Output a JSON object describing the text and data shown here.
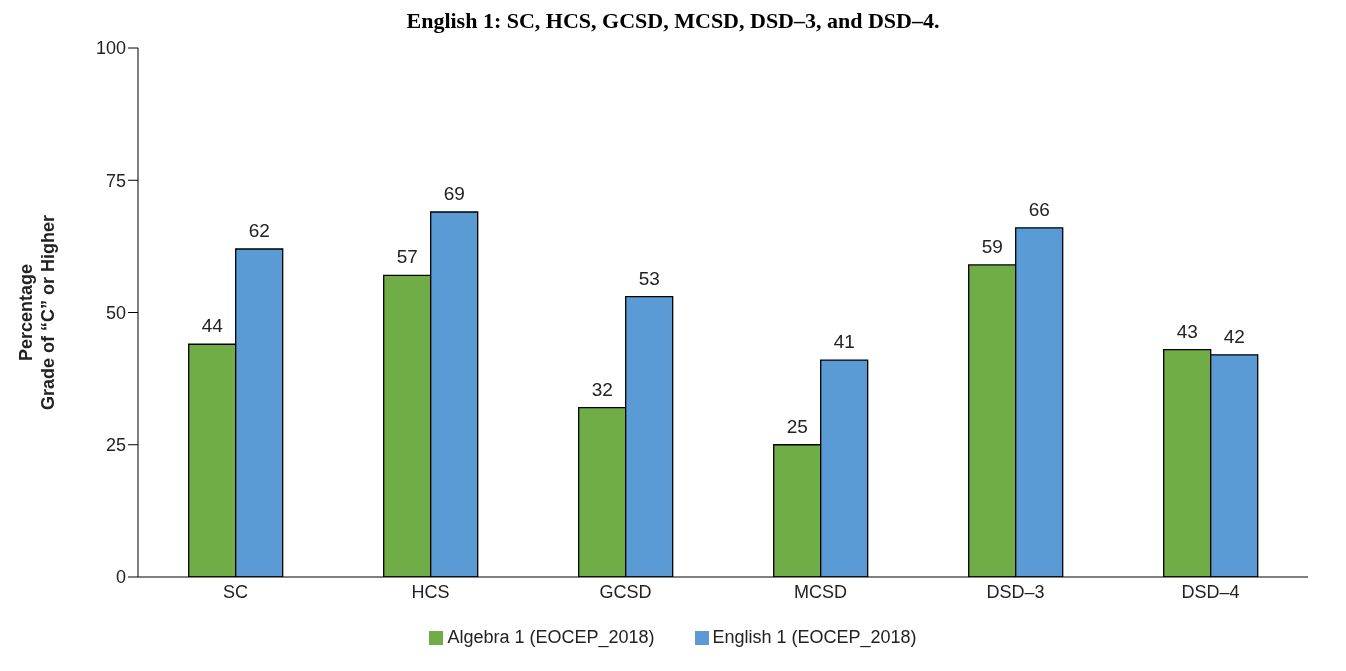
{
  "chart_data": {
    "type": "bar",
    "title": "English 1: SC, HCS, GCSD, MCSD, DSD–3, and DSD–4.",
    "ylabel": "Percentage\nGrade of “C” or Higher",
    "categories": [
      "SC",
      "HCS",
      "GCSD",
      "MCSD",
      "DSD–3",
      "DSD–4"
    ],
    "series": [
      {
        "name": "Algebra 1 (EOCEP_2018)",
        "color": "#70ad47",
        "values": [
          44,
          57,
          32,
          25,
          59,
          43
        ]
      },
      {
        "name": "English 1 (EOCEP_2018)",
        "color": "#5b9bd5",
        "values": [
          62,
          69,
          53,
          41,
          66,
          42
        ]
      }
    ],
    "ylim": [
      0,
      100
    ],
    "yticks": [
      0,
      25,
      50,
      75,
      100
    ],
    "grid": false,
    "legend": "bottom",
    "data_labels": true
  }
}
